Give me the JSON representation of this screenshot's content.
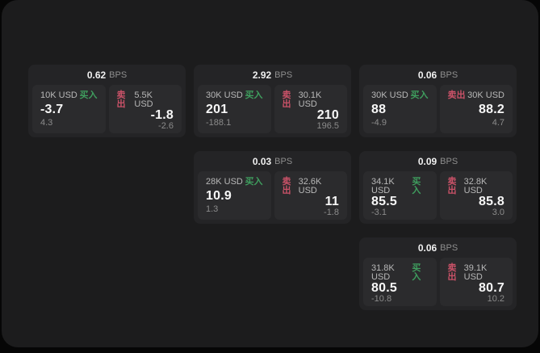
{
  "page": {
    "background": "#060606",
    "surface": "#1c1c1d",
    "card_background": "#242426",
    "panel_background": "#2b2b2d"
  },
  "colors": {
    "buy": "#3f9e5e",
    "sell": "#ca5268"
  },
  "labels": {
    "buy": "买入",
    "sell": "卖出",
    "bps_unit": "BPS"
  },
  "cards": [
    {
      "bps": "0.62",
      "buy": {
        "amount": "10K USD",
        "value": "-3.7",
        "sub": "4.3"
      },
      "sell": {
        "amount": "5.5K USD",
        "value": "-1.8",
        "sub": "-2.6"
      }
    },
    {
      "bps": "2.92",
      "buy": {
        "amount": "30K USD",
        "value": "201",
        "sub": "-188.1"
      },
      "sell": {
        "amount": "30.1K USD",
        "value": "210",
        "sub": "196.5"
      }
    },
    {
      "bps": "0.06",
      "buy": {
        "amount": "30K USD",
        "value": "88",
        "sub": "-4.9"
      },
      "sell": {
        "amount": "30K USD",
        "value": "88.2",
        "sub": "4.7"
      }
    },
    {
      "bps": "0.03",
      "buy": {
        "amount": "28K USD",
        "value": "10.9",
        "sub": "1.3"
      },
      "sell": {
        "amount": "32.6K USD",
        "value": "11",
        "sub": "-1.8"
      }
    },
    {
      "bps": "0.09",
      "buy": {
        "amount": "34.1K USD",
        "value": "85.5",
        "sub": "-3.1"
      },
      "sell": {
        "amount": "32.8K USD",
        "value": "85.8",
        "sub": "3.0"
      }
    },
    {
      "bps": "0.06",
      "buy": {
        "amount": "31.8K USD",
        "value": "80.5",
        "sub": "-10.8"
      },
      "sell": {
        "amount": "39.1K USD",
        "value": "80.7",
        "sub": "10.2"
      }
    }
  ]
}
